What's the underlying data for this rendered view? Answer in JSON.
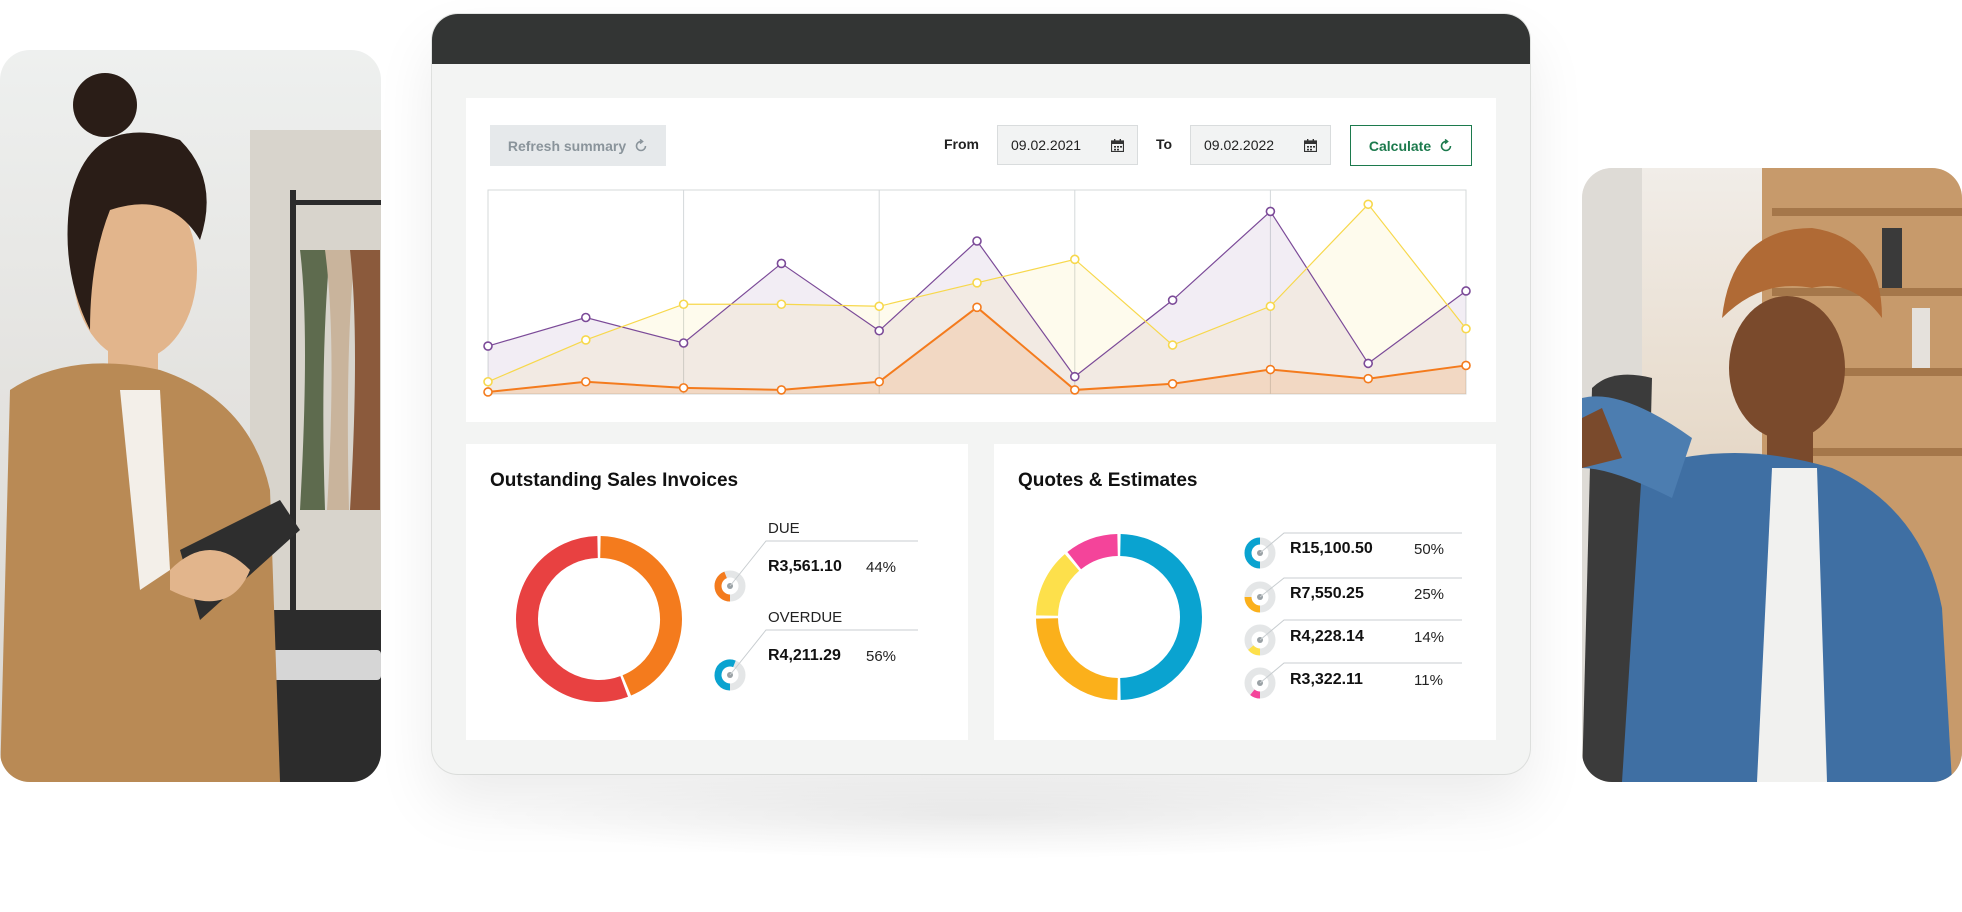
{
  "toolbar": {
    "refresh_label": "Refresh summary",
    "from_label": "From",
    "from_date": "09.02.2021",
    "to_label": "To",
    "to_date": "09.02.2022",
    "calculate_label": "Calculate",
    "refresh_icon": "refresh-icon",
    "calendar_icon": "calendar-icon"
  },
  "chart_data": [
    {
      "type": "area",
      "title": "",
      "x": [
        0,
        1,
        2,
        3,
        4,
        5,
        6,
        7,
        8,
        9,
        10
      ],
      "series": [
        {
          "color": "#7b4a98",
          "values": [
            47,
            75,
            50,
            128,
            62,
            150,
            17,
            92,
            179,
            30,
            101
          ]
        },
        {
          "color": "#f7d84c",
          "values": [
            12,
            53,
            88,
            88,
            86,
            109,
            132,
            48,
            86,
            186,
            64
          ]
        },
        {
          "color": "#f47b1d",
          "values": [
            2,
            12,
            6,
            4,
            12,
            85,
            4,
            10,
            24,
            15,
            28
          ]
        }
      ],
      "ylim": [
        0,
        200
      ],
      "grid": true
    },
    {
      "type": "pie",
      "title": "Outstanding Sales Invoices",
      "categories": [
        "DUE",
        "OVERDUE"
      ],
      "values": [
        44,
        56
      ],
      "colors": [
        "#f47b1d",
        "#e84141"
      ]
    },
    {
      "type": "pie",
      "title": "Quotes & Estimates",
      "categories": [
        "R15,100.50",
        "R7,550.25",
        "R4,228.14",
        "R3,322.11"
      ],
      "values": [
        50,
        25,
        14,
        11
      ],
      "colors": [
        "#0aa3d0",
        "#fbb01b",
        "#fde04b",
        "#f4449a"
      ]
    }
  ],
  "invoices": {
    "title": "Outstanding Sales Invoices",
    "items": [
      {
        "label": "DUE",
        "amount": "R3,561.10",
        "pct": "44%",
        "color": "#f47b1d",
        "fraction": 0.44
      },
      {
        "label": "OVERDUE",
        "amount": "R4,211.29",
        "pct": "56%",
        "color": "#0aa3d0",
        "fraction": 0.56
      }
    ]
  },
  "quotes": {
    "title": "Quotes & Estimates",
    "items": [
      {
        "amount": "R15,100.50",
        "pct": "50%",
        "color": "#0aa3d0",
        "fraction": 0.5
      },
      {
        "amount": "R7,550.25",
        "pct": "25%",
        "color": "#fbb01b",
        "fraction": 0.25
      },
      {
        "amount": "R4,228.14",
        "pct": "14%",
        "color": "#fde04b",
        "fraction": 0.14
      },
      {
        "amount": "R3,322.11",
        "pct": "11%",
        "color": "#f4449a",
        "fraction": 0.11
      }
    ]
  }
}
